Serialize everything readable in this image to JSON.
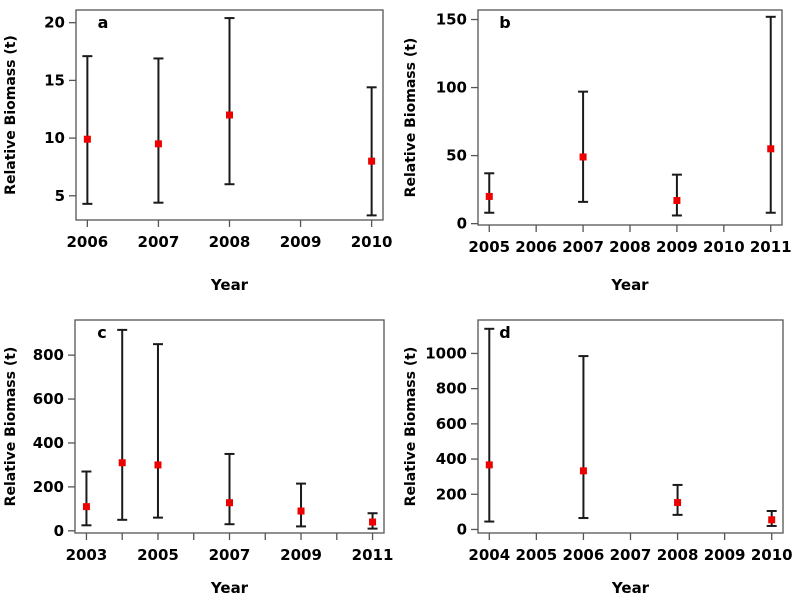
{
  "figure": {
    "background": "#ffffff",
    "point_color": "#ee0000",
    "errorbar_color": "#1a1a1a",
    "axis_color": "#555555",
    "text_color": "#000000"
  },
  "chart_data": [
    {
      "type": "scatter",
      "panel_label": "a",
      "xlabel": "Year",
      "ylabel": "Relative Biomass (t)",
      "legend": "none",
      "grid": false,
      "xlim": [
        2005.84,
        2010.16
      ],
      "ylim": [
        2.9,
        21.1
      ],
      "xticks": [
        2006,
        2007,
        2008,
        2009,
        2010
      ],
      "xtick_labels": [
        "2006",
        "2007",
        "2008",
        "2009",
        "2010"
      ],
      "yticks": [
        5,
        10,
        15,
        20
      ],
      "ytick_labels": [
        "5",
        "10",
        "15",
        "20"
      ],
      "points": [
        {
          "x": 2006,
          "y": 9.9,
          "lo": 4.3,
          "hi": 17.1
        },
        {
          "x": 2007,
          "y": 9.5,
          "lo": 4.4,
          "hi": 16.9
        },
        {
          "x": 2008,
          "y": 12.0,
          "lo": 6.0,
          "hi": 20.4
        },
        {
          "x": 2010,
          "y": 8.0,
          "lo": 3.3,
          "hi": 14.4
        }
      ]
    },
    {
      "type": "scatter",
      "panel_label": "b",
      "xlabel": "Year",
      "ylabel": "Relative Biomass (t)",
      "legend": "none",
      "grid": false,
      "xlim": [
        2004.76,
        2011.24
      ],
      "ylim": [
        -1,
        157
      ],
      "xticks": [
        2005,
        2006,
        2007,
        2008,
        2009,
        2010,
        2011
      ],
      "xtick_labels": [
        "2005",
        "2006",
        "2007",
        "2008",
        "2009",
        "2010",
        "2011"
      ],
      "yticks": [
        0,
        50,
        100,
        150
      ],
      "ytick_labels": [
        "0",
        "50",
        "100",
        "150"
      ],
      "points": [
        {
          "x": 2005,
          "y": 20,
          "lo": 8,
          "hi": 37
        },
        {
          "x": 2007,
          "y": 49,
          "lo": 16,
          "hi": 97
        },
        {
          "x": 2009,
          "y": 17,
          "lo": 6,
          "hi": 36
        },
        {
          "x": 2011,
          "y": 55,
          "lo": 8,
          "hi": 152
        }
      ]
    },
    {
      "type": "scatter",
      "panel_label": "c",
      "xlabel": "Year",
      "ylabel": "Relative Biomass (t)",
      "legend": "none",
      "grid": false,
      "xlim": [
        2002.68,
        2011.32
      ],
      "ylim": [
        -10,
        960
      ],
      "xticks": [
        2003,
        2004,
        2005,
        2006,
        2007,
        2008,
        2009,
        2010,
        2011
      ],
      "xtick_labels": [
        "2003",
        "",
        "2005",
        "",
        "2007",
        "",
        "2009",
        "",
        "2011"
      ],
      "yticks": [
        0,
        200,
        400,
        600,
        800
      ],
      "ytick_labels": [
        "0",
        "200",
        "400",
        "600",
        "800"
      ],
      "points": [
        {
          "x": 2003,
          "y": 110,
          "lo": 25,
          "hi": 270
        },
        {
          "x": 2004,
          "y": 310,
          "lo": 50,
          "hi": 915
        },
        {
          "x": 2005,
          "y": 300,
          "lo": 60,
          "hi": 850
        },
        {
          "x": 2007,
          "y": 128,
          "lo": 30,
          "hi": 350
        },
        {
          "x": 2009,
          "y": 90,
          "lo": 20,
          "hi": 215
        },
        {
          "x": 2011,
          "y": 40,
          "lo": 10,
          "hi": 80
        }
      ]
    },
    {
      "type": "scatter",
      "panel_label": "d",
      "xlabel": "Year",
      "ylabel": "Relative Biomass (t)",
      "legend": "none",
      "grid": false,
      "xlim": [
        2003.76,
        2010.24
      ],
      "ylim": [
        -20,
        1190
      ],
      "xticks": [
        2004,
        2005,
        2006,
        2007,
        2008,
        2009,
        2010
      ],
      "xtick_labels": [
        "2004",
        "2005",
        "2006",
        "2007",
        "2008",
        "2009",
        "2010"
      ],
      "yticks": [
        0,
        200,
        400,
        600,
        800,
        1000
      ],
      "ytick_labels": [
        "0",
        "200",
        "400",
        "600",
        "800",
        "1000"
      ],
      "points": [
        {
          "x": 2004,
          "y": 367,
          "lo": 45,
          "hi": 1140
        },
        {
          "x": 2006,
          "y": 333,
          "lo": 65,
          "hi": 985
        },
        {
          "x": 2008,
          "y": 153,
          "lo": 83,
          "hi": 253
        },
        {
          "x": 2010,
          "y": 55,
          "lo": 20,
          "hi": 105
        }
      ]
    }
  ]
}
